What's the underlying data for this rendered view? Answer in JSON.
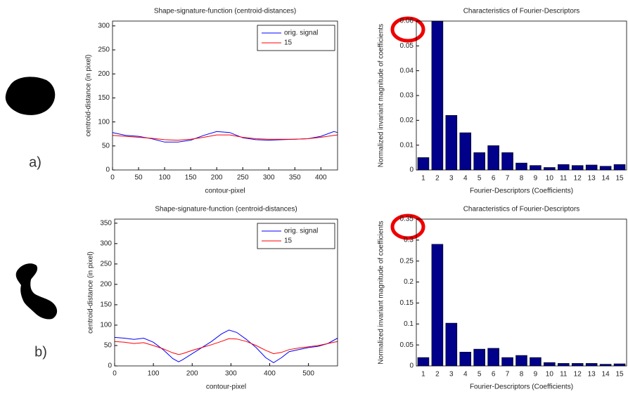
{
  "panel_labels": [
    "a)",
    "b)"
  ],
  "chart_data": [
    {
      "type": "line",
      "title": "Shape-signature-function (centroid-distances)",
      "x_label": "contour-pixel",
      "y_label": "centroid-distance (in pixel)",
      "x": [
        0,
        25,
        50,
        75,
        100,
        125,
        150,
        175,
        200,
        225,
        250,
        275,
        300,
        325,
        350,
        375,
        400,
        425,
        432
      ],
      "series": [
        {
          "name": "orig. signal",
          "color": "#0000ff",
          "values": [
            78,
            72,
            70,
            65,
            58,
            58,
            62,
            72,
            80,
            78,
            67,
            63,
            62,
            63,
            64,
            65,
            70,
            80,
            78
          ]
        },
        {
          "name": "15",
          "color": "#ff0000",
          "values": [
            72,
            70,
            68,
            66,
            63,
            62,
            64,
            68,
            73,
            73,
            68,
            65,
            64,
            64,
            64,
            65,
            68,
            72,
            73
          ]
        }
      ],
      "xlim": [
        0,
        432
      ],
      "xticks": [
        0,
        50,
        100,
        150,
        200,
        250,
        300,
        350,
        400
      ],
      "ylim": [
        0,
        310
      ],
      "yticks": [
        0,
        50,
        100,
        150,
        200,
        250,
        300
      ],
      "legend": "upper right"
    },
    {
      "type": "bar",
      "title": "Characteristics of Fourier-Descriptors",
      "x_label": "Fourier-Descriptors (Coefficients)",
      "y_label": "Normalized invariant magnitude of coefficients",
      "categories": [
        "1",
        "2",
        "3",
        "4",
        "5",
        "6",
        "7",
        "8",
        "9",
        "10",
        "11",
        "12",
        "13",
        "14",
        "15"
      ],
      "values": [
        0.005,
        0.06,
        0.022,
        0.015,
        0.007,
        0.0098,
        0.007,
        0.0028,
        0.0018,
        0.001,
        0.0022,
        0.0018,
        0.002,
        0.0015,
        0.0022
      ],
      "color": "#00008b",
      "ylim": [
        0,
        0.06
      ],
      "yticks": [
        0,
        0.01,
        0.02,
        0.03,
        0.04,
        0.05,
        0.06
      ]
    },
    {
      "type": "line",
      "title": "Shape-signature-function (centroid-distances)",
      "x_label": "contour-pixel",
      "y_label": "centroid-distance (in pixel)",
      "x": [
        0,
        25,
        50,
        75,
        100,
        125,
        150,
        165,
        175,
        200,
        225,
        250,
        275,
        295,
        315,
        340,
        365,
        390,
        410,
        430,
        450,
        475,
        500,
        525,
        550,
        575
      ],
      "series": [
        {
          "name": "orig. signal",
          "color": "#0000ff",
          "values": [
            70,
            68,
            65,
            68,
            58,
            40,
            18,
            10,
            15,
            30,
            45,
            60,
            78,
            88,
            82,
            65,
            45,
            20,
            8,
            20,
            35,
            40,
            45,
            48,
            55,
            68
          ]
        },
        {
          "name": "15",
          "color": "#ff0000",
          "values": [
            60,
            58,
            55,
            57,
            50,
            42,
            32,
            28,
            30,
            38,
            45,
            52,
            60,
            67,
            66,
            60,
            50,
            38,
            30,
            33,
            40,
            44,
            47,
            50,
            55,
            60
          ]
        }
      ],
      "xlim": [
        0,
        575
      ],
      "xticks": [
        0,
        100,
        200,
        300,
        400,
        500
      ],
      "ylim": [
        0,
        360
      ],
      "yticks": [
        0,
        50,
        100,
        150,
        200,
        250,
        300,
        350
      ],
      "legend": "upper right"
    },
    {
      "type": "bar",
      "title": "Characteristics of Fourier-Descriptors",
      "x_label": "Fourier-Descriptors (Coefficients)",
      "y_label": "Normalized invariant magnitude of coefficients",
      "categories": [
        "1",
        "2",
        "3",
        "4",
        "5",
        "6",
        "7",
        "8",
        "9",
        "10",
        "11",
        "12",
        "13",
        "14",
        "15"
      ],
      "values": [
        0.02,
        0.29,
        0.102,
        0.033,
        0.04,
        0.042,
        0.02,
        0.025,
        0.02,
        0.008,
        0.006,
        0.006,
        0.006,
        0.004,
        0.005
      ],
      "color": "#00008b",
      "ylim": [
        0,
        0.35
      ],
      "yticks": [
        0,
        0.05,
        0.1,
        0.15,
        0.2,
        0.25,
        0.3,
        0.35
      ]
    }
  ]
}
